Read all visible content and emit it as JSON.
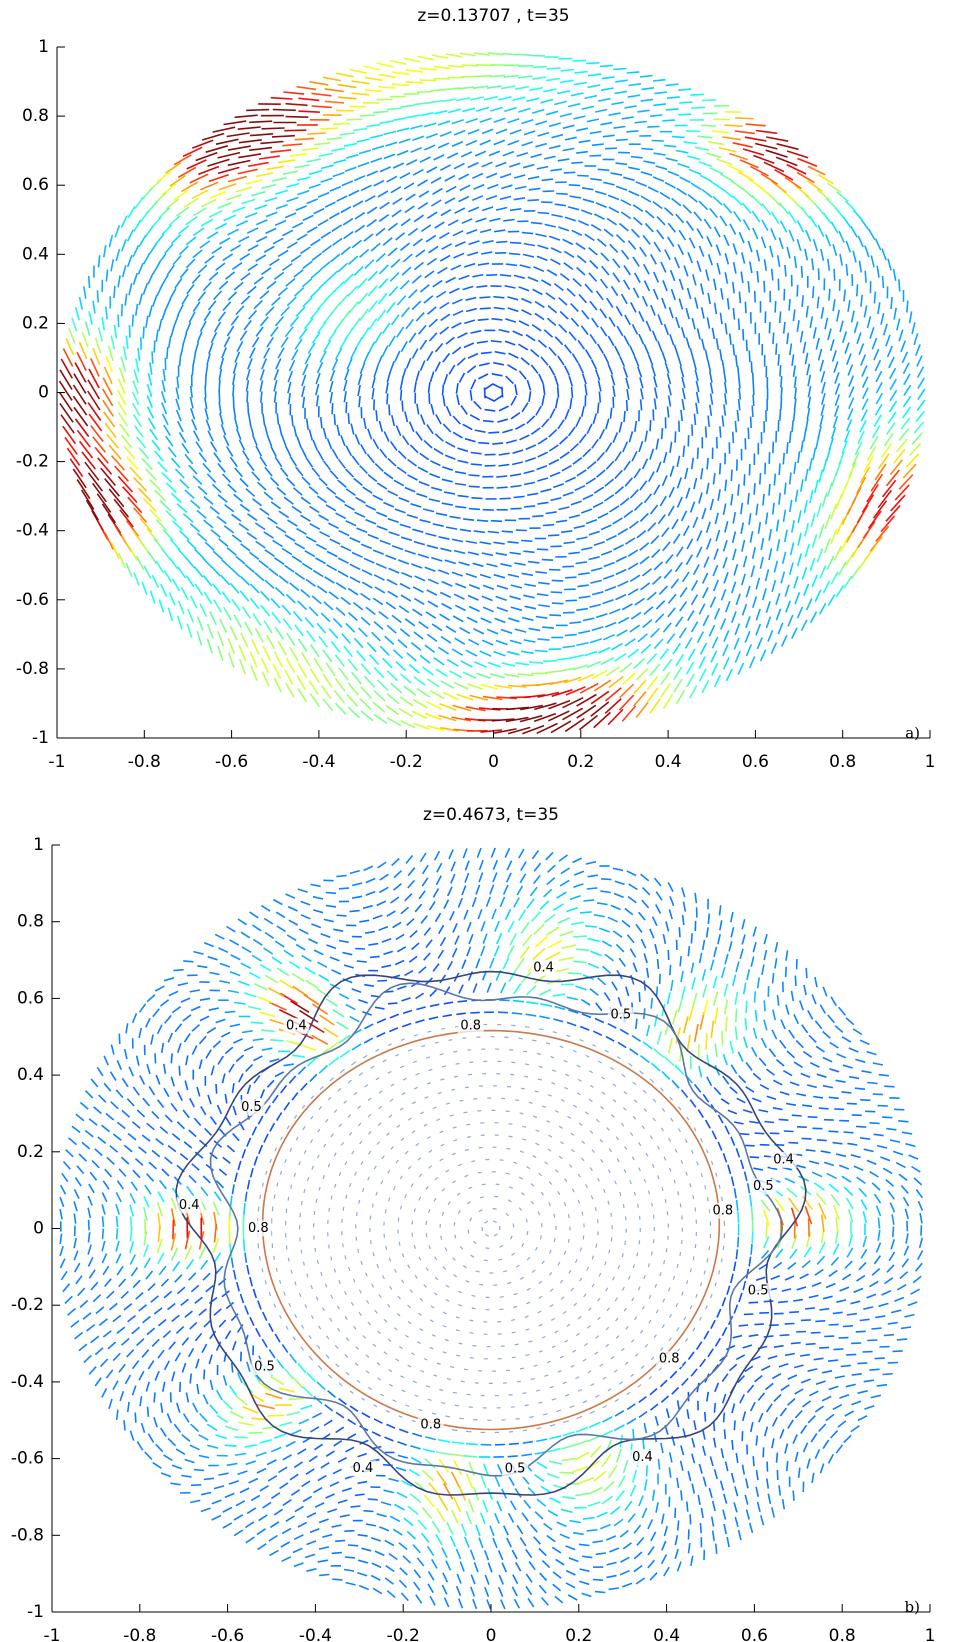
{
  "chart_data": [
    {
      "type": "quiver",
      "title": "z=0.13707 , t=35",
      "panel_label": "a)",
      "xlim": [
        -1,
        1
      ],
      "ylim": [
        -1,
        1
      ],
      "xticks": [
        -1,
        -0.8,
        -0.6,
        -0.4,
        -0.2,
        0,
        0.2,
        0.4,
        0.6,
        0.8,
        1
      ],
      "yticks": [
        -1,
        -0.8,
        -0.6,
        -0.4,
        -0.2,
        0,
        0.2,
        0.4,
        0.6,
        0.8,
        1
      ]
    },
    {
      "type": "quiver",
      "title": "z=0.4673, t=35",
      "panel_label": "b)",
      "xlim": [
        -1,
        1
      ],
      "ylim": [
        -1,
        1
      ],
      "xticks": [
        -1,
        -0.8,
        -0.6,
        -0.4,
        -0.2,
        0,
        0.2,
        0.4,
        0.6,
        0.8,
        1
      ],
      "yticks": [
        -1,
        -0.8,
        -0.6,
        -0.4,
        -0.2,
        0,
        0.2,
        0.4,
        0.6,
        0.8,
        1
      ],
      "contours": [
        {
          "level": 0.4,
          "radius": 0.68,
          "color": "#34457e"
        },
        {
          "level": 0.5,
          "radius": 0.62,
          "color": "#5878a8"
        },
        {
          "level": 0.8,
          "radius": 0.52,
          "color": "#c9794b"
        }
      ]
    }
  ]
}
